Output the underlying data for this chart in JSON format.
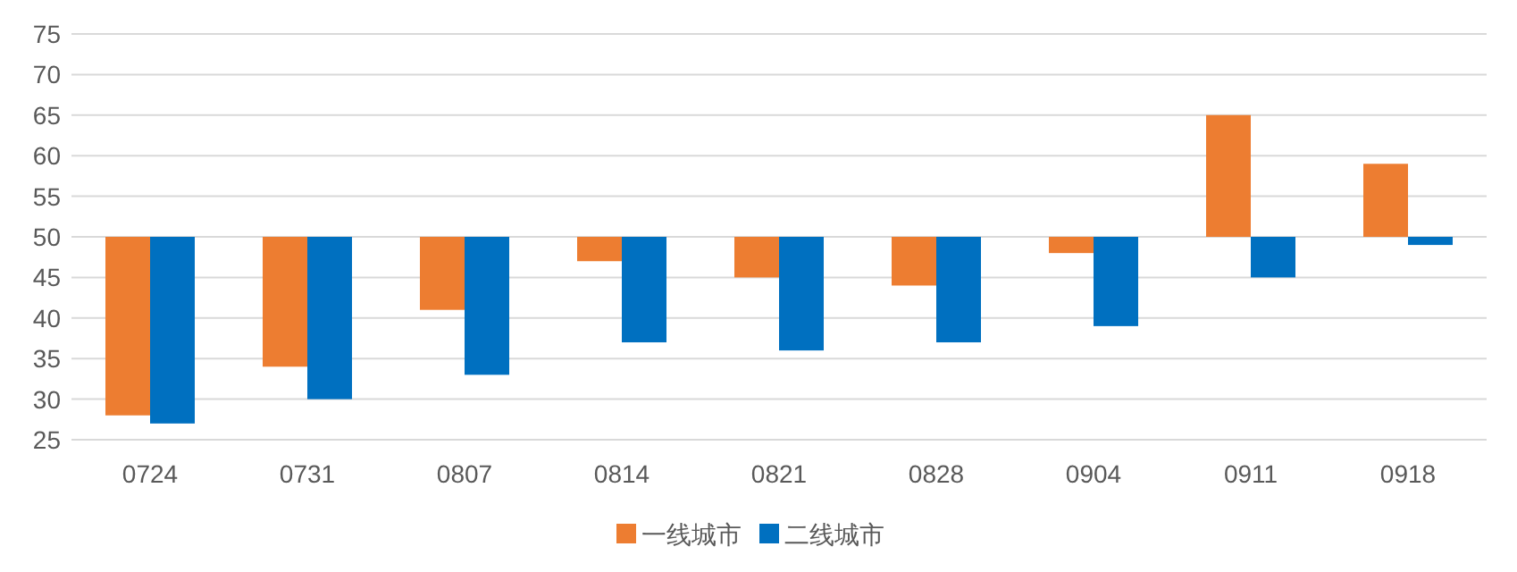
{
  "chart_data": {
    "type": "bar",
    "categories": [
      "0724",
      "0731",
      "0807",
      "0814",
      "0821",
      "0828",
      "0904",
      "0911",
      "0918"
    ],
    "series": [
      {
        "name": "一线城市",
        "color": "#ed7d31",
        "base": [
          50,
          50,
          50,
          50,
          50,
          50,
          50,
          50,
          50
        ],
        "values": [
          -22,
          -16,
          -9,
          -3,
          -5,
          -6,
          -2,
          15,
          9
        ]
      },
      {
        "name": "二线城市",
        "color": "#0070c0",
        "base": [
          50,
          50,
          50,
          50,
          50,
          50,
          50,
          50,
          50
        ],
        "values": [
          -23,
          -20,
          -17,
          -13,
          -14,
          -13,
          -11,
          -5,
          -1
        ]
      }
    ],
    "ylim": [
      25,
      75
    ],
    "yticks": [
      25,
      30,
      35,
      40,
      45,
      50,
      55,
      60,
      65,
      70,
      75
    ],
    "grid": "y",
    "legend": "bottom"
  }
}
